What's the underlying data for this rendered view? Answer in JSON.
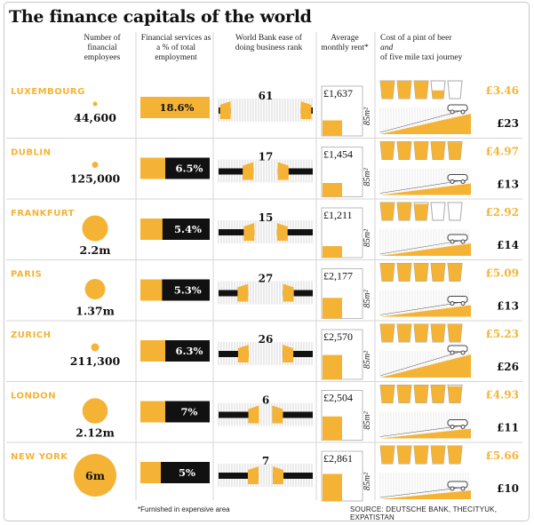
{
  "title": "The finance capitals of the world",
  "headers": {
    "employees": "Number of financial employees",
    "share": "Financial services as a % of total employment",
    "rank": "World Bank ease of doing business rank",
    "rent": "Average monthly rent*",
    "cost_a": "Cost of a pint of beer",
    "cost_b": "and",
    "cost_c": "of five mile taxi journey"
  },
  "rent_unit": "85m²",
  "footnote": "*Furnished in expensive area",
  "source": "SOURCE: DEUTSCHE BANK, THECITYUK, EXPATISTAN",
  "colors": {
    "accent": "#f5b335",
    "dark": "#111111",
    "grid": "#cccccc"
  },
  "chart_data": {
    "type": "table",
    "columns": [
      "employees",
      "share_pct",
      "ease_rank",
      "rent_gbp",
      "beer_gbp",
      "taxi_gbp"
    ],
    "rows": [
      {
        "city": "LUXEMBOURG",
        "employees": 44600,
        "employees_label": "44,600",
        "share_pct": 18.6,
        "share_label": "18.6%",
        "rank": 61,
        "rank_label": "61",
        "rent": 1637,
        "rent_label": "£1,637",
        "beer": 3.46,
        "beer_label": "£3.46",
        "taxi": 23,
        "taxi_label": "£23"
      },
      {
        "city": "DUBLIN",
        "employees": 125000,
        "employees_label": "125,000",
        "share_pct": 6.5,
        "share_label": "6.5%",
        "rank": 17,
        "rank_label": "17",
        "rent": 1454,
        "rent_label": "£1,454",
        "beer": 4.97,
        "beer_label": "£4.97",
        "taxi": 13,
        "taxi_label": "£13"
      },
      {
        "city": "FRANKFURT",
        "employees": 2200000,
        "employees_label": "2.2m",
        "share_pct": 5.4,
        "share_label": "5.4%",
        "rank": 15,
        "rank_label": "15",
        "rent": 1211,
        "rent_label": "£1,211",
        "beer": 2.92,
        "beer_label": "£2.92",
        "taxi": 14,
        "taxi_label": "£14"
      },
      {
        "city": "PARIS",
        "employees": 1370000,
        "employees_label": "1.37m",
        "share_pct": 5.3,
        "share_label": "5.3%",
        "rank": 27,
        "rank_label": "27",
        "rent": 2177,
        "rent_label": "£2,177",
        "beer": 5.09,
        "beer_label": "£5.09",
        "taxi": 13,
        "taxi_label": "£13"
      },
      {
        "city": "ZURICH",
        "employees": 211300,
        "employees_label": "211,300",
        "share_pct": 6.3,
        "share_label": "6.3%",
        "rank": 26,
        "rank_label": "26",
        "rent": 2570,
        "rent_label": "£2,570",
        "beer": 5.23,
        "beer_label": "£5.23",
        "taxi": 26,
        "taxi_label": "£26"
      },
      {
        "city": "LONDON",
        "employees": 2120000,
        "employees_label": "2.12m",
        "share_pct": 7,
        "share_label": "7%",
        "rank": 6,
        "rank_label": "6",
        "rent": 2504,
        "rent_label": "£2,504",
        "beer": 4.93,
        "beer_label": "£4.93",
        "taxi": 11,
        "taxi_label": "£11"
      },
      {
        "city": "NEW YORK",
        "employees": 6000000,
        "employees_label": "6m",
        "share_pct": 5,
        "share_label": "5%",
        "rank": 7,
        "rank_label": "7",
        "rent": 2861,
        "rent_label": "£2,861",
        "beer": 5.66,
        "beer_label": "£5.66",
        "taxi": 10,
        "taxi_label": "£10"
      }
    ]
  }
}
